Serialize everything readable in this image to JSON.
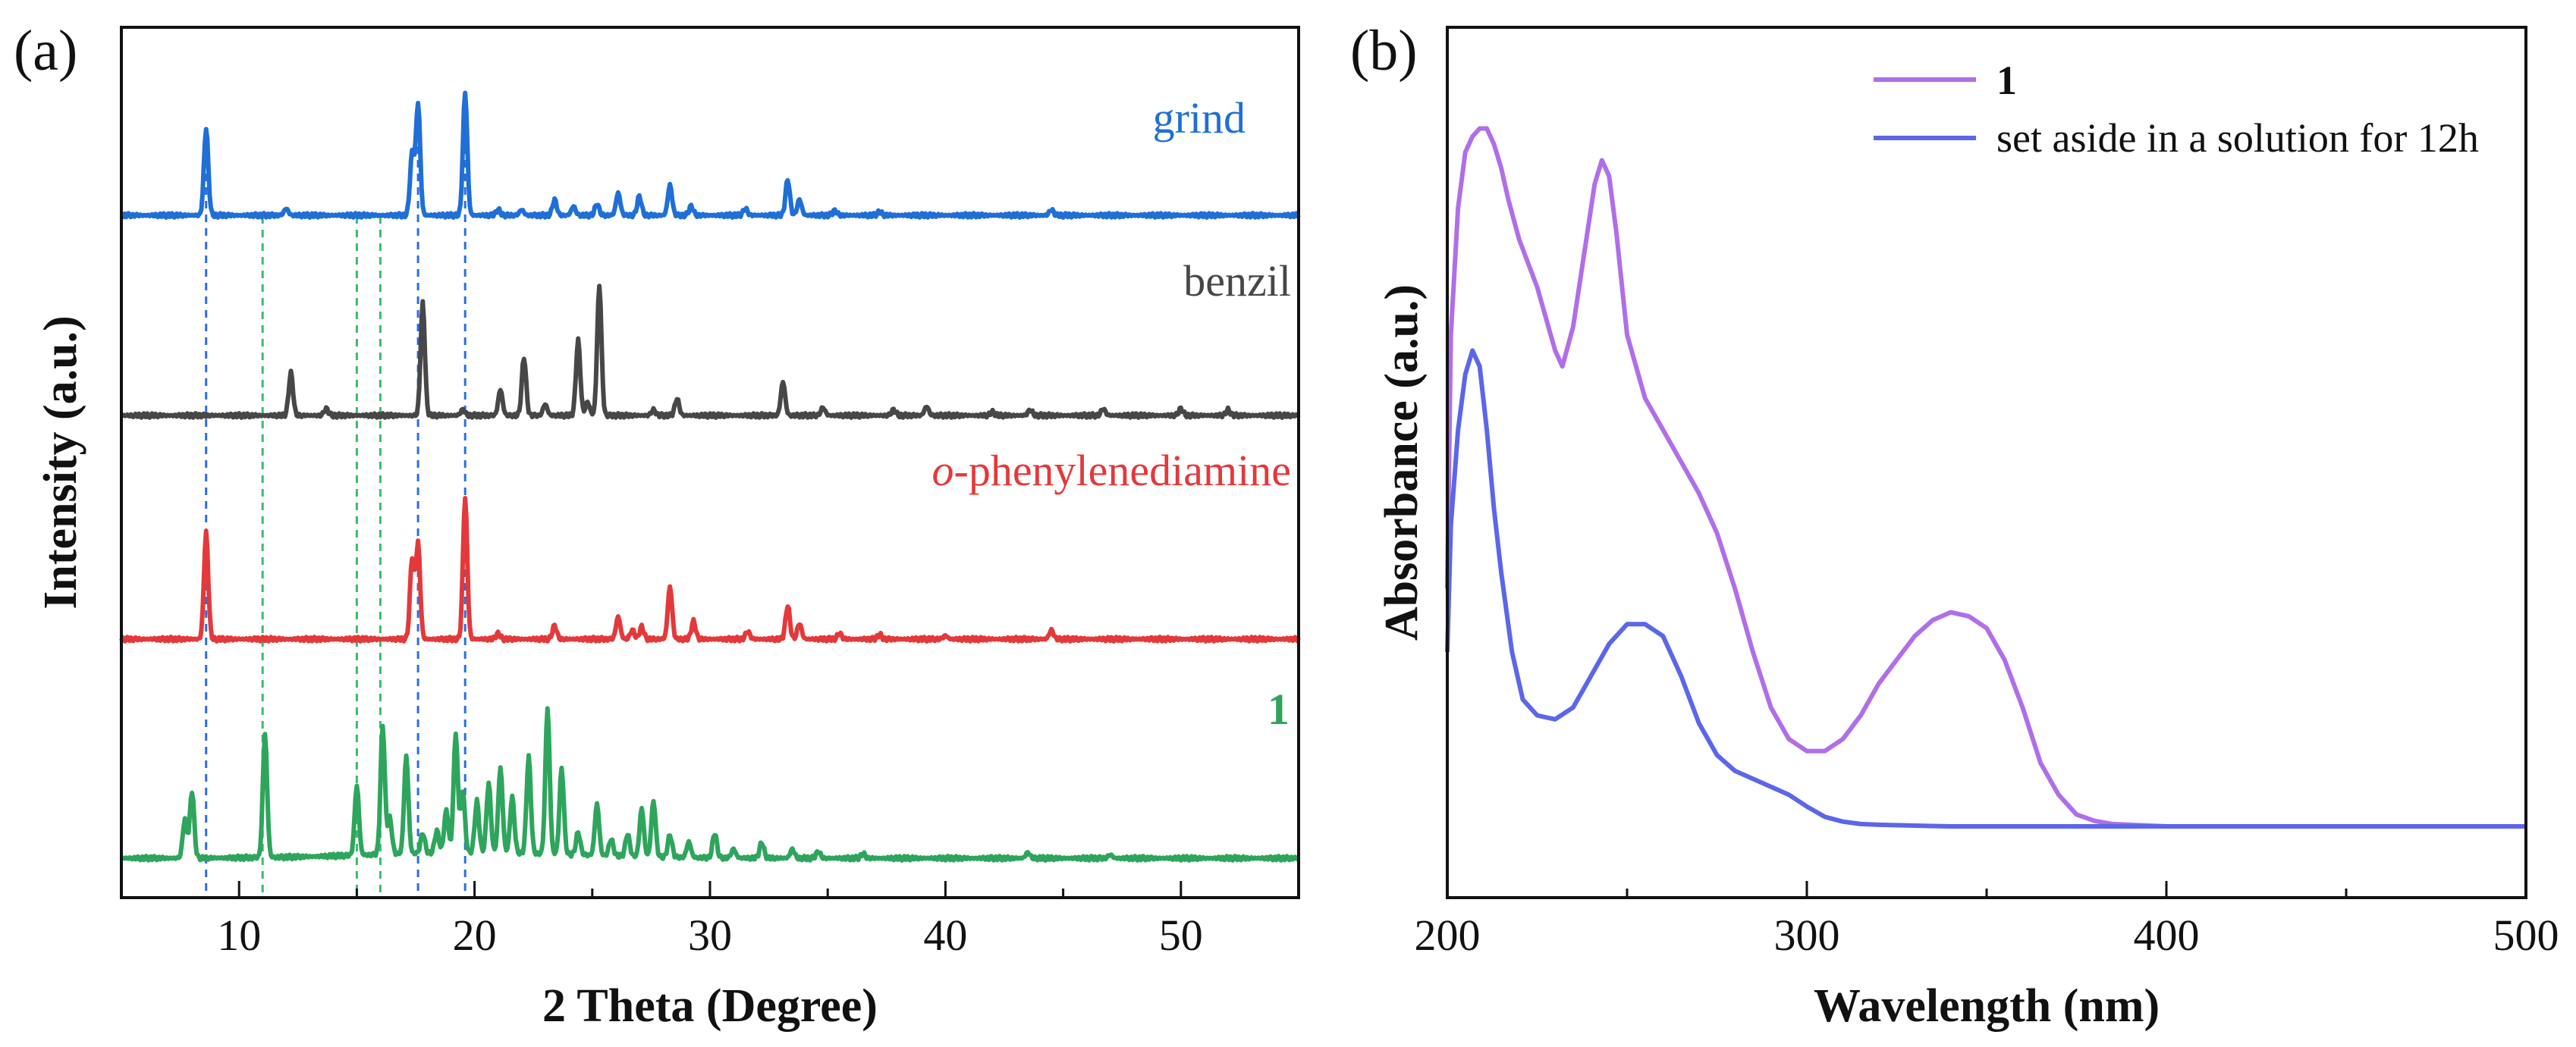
{
  "chart_data": [
    {
      "panel": "(a)",
      "type": "line",
      "xlabel": "2 Theta (Degree)",
      "ylabel": "Intensity (a.u.)",
      "xlim": [
        5,
        55
      ],
      "xticks": [
        10,
        20,
        30,
        40,
        50
      ],
      "colors": {
        "grind": "#1f6fd6",
        "benzil": "#474747",
        "ophen": "#e3393b",
        "one": "#2ea55c"
      },
      "reference_lines": {
        "blue": [
          8.6,
          17.6,
          19.6
        ],
        "green": [
          11.0,
          15.0,
          16.0
        ]
      },
      "series": [
        {
          "key": "grind",
          "name": "grind",
          "offset": 3.0,
          "peaks": [
            [
              8.6,
              0.78
            ],
            [
              12.0,
              0.06
            ],
            [
              17.35,
              0.55
            ],
            [
              17.6,
              1.0
            ],
            [
              19.6,
              1.1
            ],
            [
              21.0,
              0.05
            ],
            [
              22.0,
              0.05
            ],
            [
              23.4,
              0.14
            ],
            [
              24.2,
              0.08
            ],
            [
              25.2,
              0.1
            ],
            [
              26.1,
              0.2
            ],
            [
              27.0,
              0.17
            ],
            [
              28.3,
              0.27
            ],
            [
              29.2,
              0.08
            ],
            [
              31.5,
              0.06
            ],
            [
              33.3,
              0.32
            ],
            [
              33.8,
              0.14
            ],
            [
              35.3,
              0.04
            ],
            [
              37.2,
              0.03
            ],
            [
              44.5,
              0.05
            ]
          ]
        },
        {
          "key": "benzil",
          "name": "benzil",
          "offset": 2.0,
          "peaks": [
            [
              12.2,
              0.38
            ],
            [
              13.7,
              0.06
            ],
            [
              17.8,
              1.0
            ],
            [
              19.5,
              0.05
            ],
            [
              21.1,
              0.23
            ],
            [
              22.1,
              0.52
            ],
            [
              23.0,
              0.1
            ],
            [
              24.4,
              0.67
            ],
            [
              24.8,
              0.12
            ],
            [
              25.3,
              1.16
            ],
            [
              27.6,
              0.05
            ],
            [
              28.6,
              0.15
            ],
            [
              33.1,
              0.3
            ],
            [
              34.8,
              0.07
            ],
            [
              37.8,
              0.05
            ],
            [
              39.2,
              0.08
            ],
            [
              42.0,
              0.03
            ],
            [
              43.6,
              0.05
            ],
            [
              46.7,
              0.06
            ],
            [
              50.0,
              0.06
            ],
            [
              52.0,
              0.05
            ]
          ]
        },
        {
          "key": "ophen",
          "name": "o-phenylenediamine",
          "name_italic": "o",
          "name_rest": "-phenylenediamine",
          "offset": 1.0,
          "peaks": [
            [
              8.6,
              0.95
            ],
            [
              17.35,
              0.72
            ],
            [
              17.6,
              0.85
            ],
            [
              19.6,
              1.26
            ],
            [
              21.0,
              0.05
            ],
            [
              23.4,
              0.12
            ],
            [
              26.1,
              0.2
            ],
            [
              26.7,
              0.08
            ],
            [
              27.1,
              0.11
            ],
            [
              28.3,
              0.47
            ],
            [
              29.3,
              0.16
            ],
            [
              31.6,
              0.07
            ],
            [
              33.3,
              0.3
            ],
            [
              33.8,
              0.14
            ],
            [
              35.5,
              0.05
            ],
            [
              37.2,
              0.04
            ],
            [
              40.0,
              0.03
            ],
            [
              44.5,
              0.08
            ]
          ]
        },
        {
          "key": "one",
          "name": "1",
          "offset": 0.0,
          "peaks": [
            [
              7.7,
              0.35
            ],
            [
              8.0,
              0.6
            ],
            [
              11.1,
              1.1
            ],
            [
              15.0,
              0.62
            ],
            [
              16.1,
              1.15
            ],
            [
              16.4,
              0.32
            ],
            [
              17.1,
              0.87
            ],
            [
              17.8,
              0.18
            ],
            [
              18.4,
              0.2
            ],
            [
              18.8,
              0.38
            ],
            [
              19.2,
              1.06
            ],
            [
              19.5,
              0.55
            ],
            [
              20.1,
              0.46
            ],
            [
              20.6,
              0.62
            ],
            [
              21.1,
              0.76
            ],
            [
              21.6,
              0.5
            ],
            [
              22.3,
              0.86
            ],
            [
              23.1,
              1.3
            ],
            [
              23.7,
              0.77
            ],
            [
              24.4,
              0.2
            ],
            [
              25.2,
              0.46
            ],
            [
              25.8,
              0.15
            ],
            [
              26.5,
              0.2
            ],
            [
              27.1,
              0.43
            ],
            [
              27.6,
              0.5
            ],
            [
              28.3,
              0.2
            ],
            [
              29.1,
              0.14
            ],
            [
              30.2,
              0.22
            ],
            [
              31.0,
              0.08
            ],
            [
              32.2,
              0.14
            ],
            [
              33.5,
              0.08
            ],
            [
              34.6,
              0.06
            ],
            [
              36.5,
              0.04
            ],
            [
              43.5,
              0.05
            ],
            [
              47.0,
              0.03
            ]
          ]
        }
      ]
    },
    {
      "panel": "(b)",
      "type": "line",
      "xlabel": "Wavelength (nm)",
      "ylabel": "Absorbance (a.u.)",
      "xlim": [
        200,
        500
      ],
      "ylim": [
        0,
        1
      ],
      "xticks": [
        200,
        300,
        400,
        500
      ],
      "legend": {
        "position": "top-right"
      },
      "series": [
        {
          "key": "s1",
          "name": "1",
          "color": "#b06ee8",
          "x": [
            200,
            201,
            203,
            205,
            207,
            209,
            211,
            213,
            215,
            217,
            220,
            225,
            230,
            232,
            235,
            238,
            241,
            243,
            245,
            247,
            250,
            255,
            260,
            265,
            270,
            275,
            280,
            285,
            290,
            295,
            300,
            305,
            310,
            315,
            320,
            325,
            330,
            335,
            340,
            345,
            350,
            355,
            360,
            365,
            370,
            375,
            380,
            385,
            390,
            400,
            450,
            500
          ],
          "y": [
            0.3,
            0.62,
            0.78,
            0.85,
            0.87,
            0.88,
            0.88,
            0.86,
            0.83,
            0.79,
            0.74,
            0.68,
            0.6,
            0.58,
            0.63,
            0.72,
            0.81,
            0.84,
            0.82,
            0.75,
            0.62,
            0.54,
            0.5,
            0.46,
            0.42,
            0.37,
            0.3,
            0.22,
            0.15,
            0.11,
            0.095,
            0.095,
            0.11,
            0.14,
            0.18,
            0.21,
            0.24,
            0.26,
            0.27,
            0.265,
            0.25,
            0.21,
            0.15,
            0.08,
            0.04,
            0.015,
            0.007,
            0.003,
            0.002,
            0.0,
            0.0,
            0.0
          ]
        },
        {
          "key": "s2",
          "name": "set aside in a solution for 12h",
          "color": "#5b66ea",
          "x": [
            200,
            201,
            203,
            205,
            207,
            209,
            211,
            213,
            215,
            218,
            221,
            225,
            230,
            235,
            240,
            245,
            250,
            255,
            260,
            265,
            270,
            275,
            280,
            285,
            290,
            295,
            300,
            305,
            310,
            315,
            320,
            330,
            340,
            350,
            400,
            450,
            500
          ],
          "y": [
            0.22,
            0.38,
            0.5,
            0.57,
            0.6,
            0.58,
            0.5,
            0.4,
            0.32,
            0.22,
            0.16,
            0.14,
            0.135,
            0.15,
            0.19,
            0.23,
            0.255,
            0.255,
            0.24,
            0.19,
            0.13,
            0.09,
            0.07,
            0.06,
            0.05,
            0.04,
            0.025,
            0.012,
            0.006,
            0.003,
            0.002,
            0.001,
            0.0,
            0.0,
            0.0,
            0.0,
            0.0
          ]
        }
      ]
    }
  ]
}
